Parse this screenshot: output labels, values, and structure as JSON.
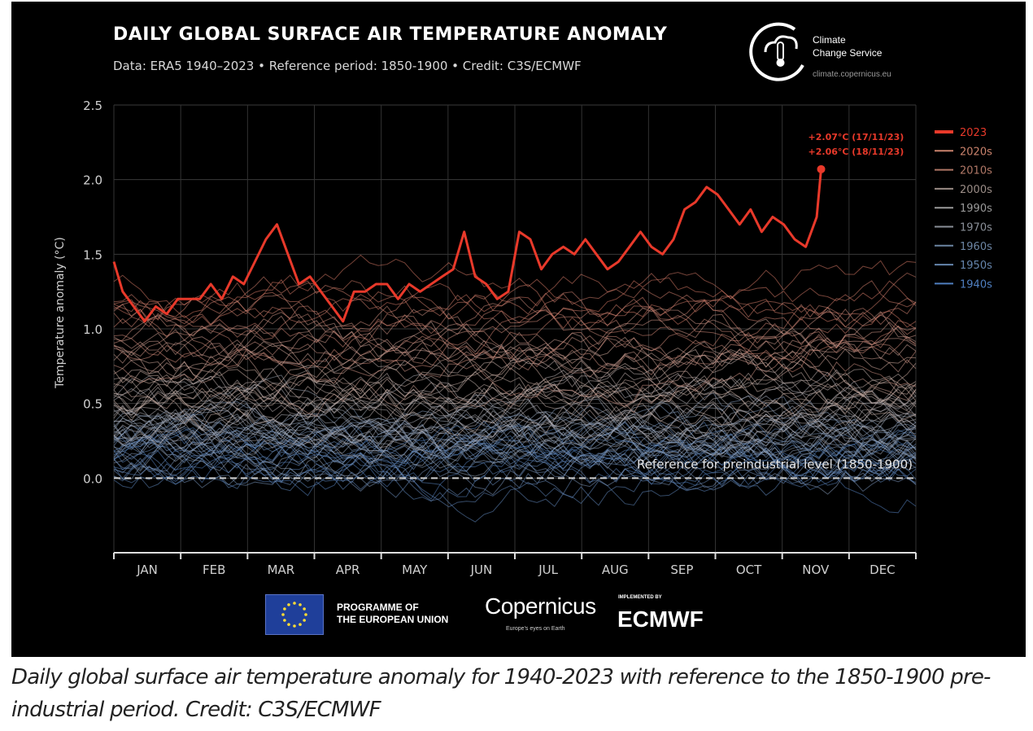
{
  "chart_data": {
    "type": "line",
    "title": "DAILY GLOBAL SURFACE AIR TEMPERATURE ANOMALY",
    "subtitle": "Data: ERA5 1940–2023 • Reference period: 1850-1900 • Credit: C3S/ECMWF",
    "ylabel": "Temperature anomaly (°C)",
    "xlabel": "",
    "ylim": [
      -0.5,
      2.5
    ],
    "yticks": [
      "2.5",
      "2.0",
      "1.5",
      "1.0",
      "0.5",
      "0.0"
    ],
    "ytick_values": [
      2.5,
      2.0,
      1.5,
      1.0,
      0.5,
      0.0
    ],
    "months": [
      "JAN",
      "FEB",
      "MAR",
      "APR",
      "MAY",
      "JUN",
      "JUL",
      "AUG",
      "SEP",
      "OCT",
      "NOV",
      "DEC"
    ],
    "legend": [
      {
        "label": "2023",
        "color": "#e8392a"
      },
      {
        "label": "2020s",
        "color": "#c9826c"
      },
      {
        "label": "2010s",
        "color": "#b07766"
      },
      {
        "label": "2000s",
        "color": "#9a8c86"
      },
      {
        "label": "1990s",
        "color": "#9a9a9a"
      },
      {
        "label": "1970s",
        "color": "#8a8f98"
      },
      {
        "label": "1960s",
        "color": "#6c85a3"
      },
      {
        "label": "1950s",
        "color": "#6585ad"
      },
      {
        "label": "1940s",
        "color": "#4f7fc0"
      }
    ],
    "series_2023": {
      "name": "2023",
      "color": "#e8392a",
      "day": [
        1,
        5,
        10,
        15,
        20,
        25,
        30,
        35,
        40,
        45,
        50,
        55,
        60,
        65,
        70,
        75,
        80,
        85,
        90,
        95,
        100,
        105,
        110,
        115,
        120,
        125,
        130,
        135,
        140,
        145,
        150,
        155,
        160,
        165,
        170,
        175,
        180,
        185,
        190,
        195,
        200,
        205,
        210,
        215,
        220,
        225,
        230,
        235,
        240,
        245,
        250,
        255,
        260,
        265,
        270,
        275,
        280,
        285,
        290,
        295,
        300,
        305,
        310,
        315,
        320,
        322
      ],
      "values": [
        1.45,
        1.25,
        1.15,
        1.05,
        1.15,
        1.1,
        1.2,
        1.2,
        1.2,
        1.3,
        1.2,
        1.35,
        1.3,
        1.45,
        1.6,
        1.7,
        1.5,
        1.3,
        1.35,
        1.25,
        1.15,
        1.05,
        1.25,
        1.25,
        1.3,
        1.3,
        1.2,
        1.3,
        1.25,
        1.3,
        1.35,
        1.4,
        1.65,
        1.35,
        1.3,
        1.2,
        1.25,
        1.65,
        1.6,
        1.4,
        1.5,
        1.55,
        1.5,
        1.6,
        1.5,
        1.4,
        1.45,
        1.55,
        1.65,
        1.55,
        1.5,
        1.6,
        1.8,
        1.85,
        1.95,
        1.9,
        1.8,
        1.7,
        1.8,
        1.65,
        1.75,
        1.7,
        1.6,
        1.55,
        1.75,
        2.07
      ]
    },
    "annotations": [
      "+2.07°C (17/11/23)",
      "+2.06°C (18/11/23)"
    ],
    "reference_label": "Reference for preindustrial level (1850-1900)"
  },
  "logo": {
    "line1": "Climate",
    "line2": "Change Service",
    "url": "climate.copernicus.eu"
  },
  "footer": {
    "eu_line1": "PROGRAMME OF",
    "eu_line2": "THE EUROPEAN UNION",
    "copernicus": "Copernicus",
    "copernicus_tagline": "Europe's eyes on Earth",
    "implemented": "IMPLEMENTED BY",
    "ecmwf": "ECMWF"
  },
  "caption": "Daily global surface air temperature anomaly for 1940-2023 with reference to the 1850-1900 pre-industrial period. Credit: C3S/ECMWF"
}
